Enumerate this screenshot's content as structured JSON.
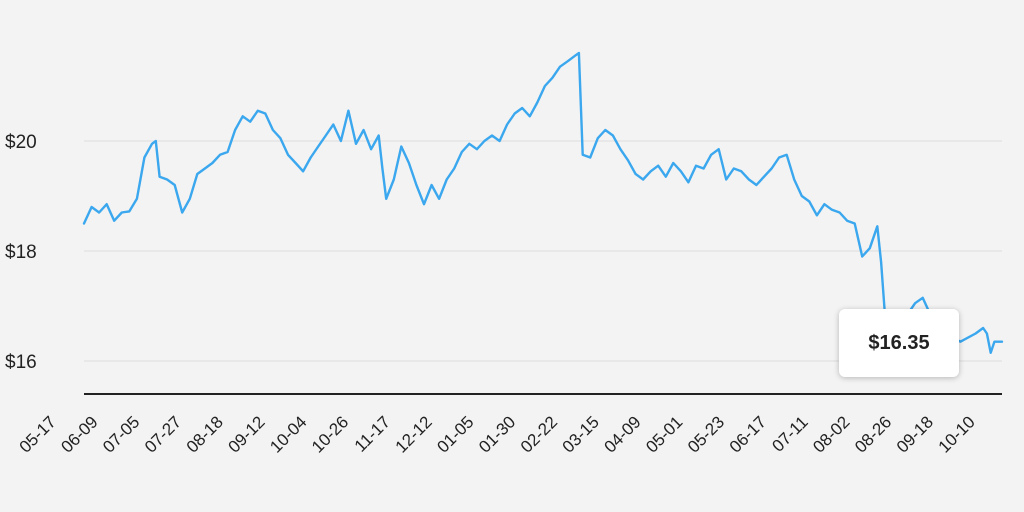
{
  "chart_data": {
    "type": "line",
    "title": "",
    "xlabel": "",
    "ylabel": "",
    "ylim": [
      15.4,
      21.9
    ],
    "yticks": [
      {
        "value": 16,
        "label": "$16"
      },
      {
        "value": 18,
        "label": "$18"
      },
      {
        "value": 20,
        "label": "$20"
      }
    ],
    "xticks": [
      "05-17",
      "06-09",
      "07-05",
      "07-27",
      "08-18",
      "09-12",
      "10-04",
      "10-26",
      "11-17",
      "12-12",
      "01-05",
      "01-30",
      "02-22",
      "03-15",
      "04-09",
      "05-01",
      "05-23",
      "06-17",
      "07-11",
      "08-02",
      "08-26",
      "09-18",
      "10-10"
    ],
    "grid": true,
    "legend": "none",
    "line_color": "#3aa7ee",
    "points": [
      [
        0,
        18.5
      ],
      [
        2,
        18.8
      ],
      [
        4,
        18.7
      ],
      [
        6,
        18.85
      ],
      [
        8,
        18.55
      ],
      [
        10,
        18.7
      ],
      [
        12,
        18.72
      ],
      [
        14,
        18.95
      ],
      [
        16,
        19.7
      ],
      [
        18,
        19.95
      ],
      [
        19,
        20.0
      ],
      [
        20,
        19.35
      ],
      [
        22,
        19.3
      ],
      [
        24,
        19.2
      ],
      [
        26,
        18.7
      ],
      [
        28,
        18.95
      ],
      [
        30,
        19.4
      ],
      [
        32,
        19.5
      ],
      [
        34,
        19.6
      ],
      [
        36,
        19.75
      ],
      [
        38,
        19.8
      ],
      [
        40,
        20.2
      ],
      [
        42,
        20.45
      ],
      [
        44,
        20.35
      ],
      [
        46,
        20.55
      ],
      [
        48,
        20.5
      ],
      [
        50,
        20.2
      ],
      [
        52,
        20.05
      ],
      [
        54,
        19.75
      ],
      [
        56,
        19.6
      ],
      [
        58,
        19.45
      ],
      [
        60,
        19.7
      ],
      [
        62,
        19.9
      ],
      [
        64,
        20.1
      ],
      [
        66,
        20.3
      ],
      [
        68,
        20.0
      ],
      [
        70,
        20.55
      ],
      [
        72,
        19.95
      ],
      [
        74,
        20.2
      ],
      [
        76,
        19.85
      ],
      [
        78,
        20.1
      ],
      [
        79,
        19.5
      ],
      [
        80,
        18.95
      ],
      [
        82,
        19.3
      ],
      [
        84,
        19.9
      ],
      [
        86,
        19.6
      ],
      [
        88,
        19.2
      ],
      [
        90,
        18.85
      ],
      [
        92,
        19.2
      ],
      [
        94,
        18.95
      ],
      [
        96,
        19.3
      ],
      [
        98,
        19.5
      ],
      [
        100,
        19.8
      ],
      [
        102,
        19.95
      ],
      [
        104,
        19.85
      ],
      [
        106,
        20.0
      ],
      [
        108,
        20.1
      ],
      [
        110,
        20.0
      ],
      [
        112,
        20.3
      ],
      [
        114,
        20.5
      ],
      [
        116,
        20.6
      ],
      [
        118,
        20.45
      ],
      [
        120,
        20.7
      ],
      [
        122,
        21.0
      ],
      [
        124,
        21.15
      ],
      [
        126,
        21.35
      ],
      [
        128,
        21.45
      ],
      [
        130,
        21.55
      ],
      [
        131,
        21.6
      ],
      [
        132,
        19.75
      ],
      [
        134,
        19.7
      ],
      [
        136,
        20.05
      ],
      [
        138,
        20.2
      ],
      [
        140,
        20.1
      ],
      [
        142,
        19.85
      ],
      [
        144,
        19.65
      ],
      [
        146,
        19.4
      ],
      [
        148,
        19.3
      ],
      [
        150,
        19.45
      ],
      [
        152,
        19.55
      ],
      [
        154,
        19.35
      ],
      [
        156,
        19.6
      ],
      [
        158,
        19.45
      ],
      [
        160,
        19.25
      ],
      [
        162,
        19.55
      ],
      [
        164,
        19.5
      ],
      [
        166,
        19.75
      ],
      [
        168,
        19.85
      ],
      [
        170,
        19.3
      ],
      [
        172,
        19.5
      ],
      [
        174,
        19.45
      ],
      [
        176,
        19.3
      ],
      [
        178,
        19.2
      ],
      [
        180,
        19.35
      ],
      [
        182,
        19.5
      ],
      [
        184,
        19.7
      ],
      [
        186,
        19.75
      ],
      [
        188,
        19.3
      ],
      [
        190,
        19.0
      ],
      [
        192,
        18.9
      ],
      [
        194,
        18.65
      ],
      [
        196,
        18.85
      ],
      [
        198,
        18.75
      ],
      [
        200,
        18.7
      ],
      [
        202,
        18.55
      ],
      [
        204,
        18.5
      ],
      [
        206,
        17.9
      ],
      [
        208,
        18.05
      ],
      [
        210,
        18.45
      ],
      [
        211,
        17.8
      ],
      [
        212,
        16.85
      ],
      [
        214,
        16.7
      ],
      [
        216,
        16.65
      ],
      [
        218,
        16.85
      ],
      [
        220,
        17.05
      ],
      [
        222,
        17.15
      ],
      [
        224,
        16.85
      ],
      [
        228,
        16.5
      ],
      [
        232,
        16.35
      ],
      [
        236,
        16.5
      ],
      [
        238,
        16.6
      ],
      [
        239,
        16.5
      ],
      [
        240,
        16.15
      ],
      [
        241,
        16.35
      ],
      [
        243,
        16.35
      ]
    ],
    "series": [
      {
        "values_ref": "points"
      }
    ],
    "annotations": [
      {
        "text": "$16.35",
        "x": 243,
        "y": 16.35
      }
    ]
  }
}
